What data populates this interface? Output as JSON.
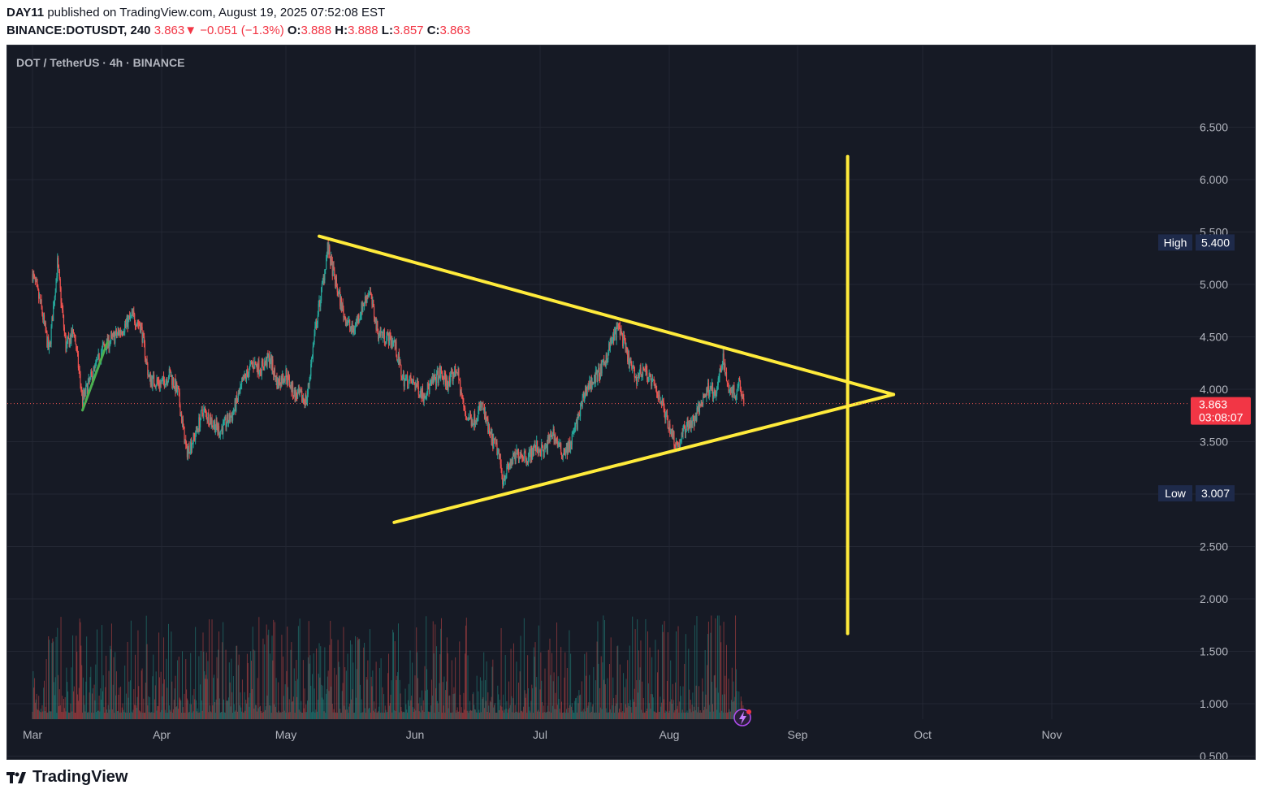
{
  "header": {
    "publisher": "DAY11",
    "published_text": "published on TradingView.com, August 19, 2025 07:52:08 EST",
    "symbol": "BINANCE:DOTUSDT, 240",
    "last": "3.863",
    "arrow": "▼",
    "change": "−0.051 (−1.3%)",
    "o_label": "O:",
    "o": "3.888",
    "h_label": "H:",
    "h": "3.888",
    "l_label": "L:",
    "l": "3.857",
    "c_label": "C:",
    "c": "3.863"
  },
  "legend": "DOT / TetherUS · 4h · BINANCE",
  "footer": {
    "brand": "TradingView"
  },
  "colors": {
    "up": "#26a69a",
    "down": "#ef5350",
    "drawing": "#ffeb3b",
    "trend": "#4caf50",
    "bg": "#161a25"
  },
  "chart_data": {
    "type": "candlestick",
    "x_ticks": [
      "Mar",
      "Apr",
      "May",
      "Jun",
      "Jul",
      "Aug",
      "Sep",
      "Oct",
      "Nov"
    ],
    "y_ticks": [
      "6.500",
      "6.000",
      "5.500",
      "5.000",
      "4.500",
      "4.000",
      "3.500",
      "3.000",
      "2.500",
      "2.000",
      "1.500",
      "1.000",
      "0.500"
    ],
    "ylim": [
      0.4,
      6.8
    ],
    "price_anchors": [
      [
        "2025-03-01",
        5.1
      ],
      [
        "2025-03-03",
        4.8
      ],
      [
        "2025-03-05",
        4.35
      ],
      [
        "2025-03-07",
        5.2
      ],
      [
        "2025-03-09",
        4.4
      ],
      [
        "2025-03-11",
        4.55
      ],
      [
        "2025-03-13",
        3.9
      ],
      [
        "2025-03-15",
        4.1
      ],
      [
        "2025-03-18",
        4.4
      ],
      [
        "2025-03-22",
        4.55
      ],
      [
        "2025-03-25",
        4.7
      ],
      [
        "2025-03-27",
        4.6
      ],
      [
        "2025-03-29",
        4.1
      ],
      [
        "2025-04-01",
        4.05
      ],
      [
        "2025-04-03",
        4.15
      ],
      [
        "2025-04-05",
        3.95
      ],
      [
        "2025-04-07",
        3.4
      ],
      [
        "2025-04-09",
        3.55
      ],
      [
        "2025-04-11",
        3.8
      ],
      [
        "2025-04-13",
        3.7
      ],
      [
        "2025-04-15",
        3.6
      ],
      [
        "2025-04-18",
        3.75
      ],
      [
        "2025-04-21",
        4.1
      ],
      [
        "2025-04-23",
        4.25
      ],
      [
        "2025-04-25",
        4.2
      ],
      [
        "2025-04-27",
        4.3
      ],
      [
        "2025-04-29",
        4.05
      ],
      [
        "2025-05-01",
        4.15
      ],
      [
        "2025-05-03",
        3.95
      ],
      [
        "2025-05-06",
        3.9
      ],
      [
        "2025-05-08",
        4.55
      ],
      [
        "2025-05-10",
        5.05
      ],
      [
        "2025-05-11",
        5.35
      ],
      [
        "2025-05-13",
        5.0
      ],
      [
        "2025-05-15",
        4.7
      ],
      [
        "2025-05-17",
        4.55
      ],
      [
        "2025-05-19",
        4.75
      ],
      [
        "2025-05-21",
        4.95
      ],
      [
        "2025-05-23",
        4.55
      ],
      [
        "2025-05-25",
        4.5
      ],
      [
        "2025-05-27",
        4.45
      ],
      [
        "2025-05-29",
        4.1
      ],
      [
        "2025-06-01",
        4.05
      ],
      [
        "2025-06-03",
        3.95
      ],
      [
        "2025-06-05",
        4.05
      ],
      [
        "2025-06-07",
        4.15
      ],
      [
        "2025-06-09",
        4.05
      ],
      [
        "2025-06-11",
        4.2
      ],
      [
        "2025-06-13",
        3.75
      ],
      [
        "2025-06-15",
        3.7
      ],
      [
        "2025-06-17",
        3.85
      ],
      [
        "2025-06-19",
        3.55
      ],
      [
        "2025-06-21",
        3.4
      ],
      [
        "2025-06-22",
        3.15
      ],
      [
        "2025-06-24",
        3.3
      ],
      [
        "2025-06-26",
        3.4
      ],
      [
        "2025-06-28",
        3.35
      ],
      [
        "2025-06-30",
        3.45
      ],
      [
        "2025-07-02",
        3.4
      ],
      [
        "2025-07-04",
        3.6
      ],
      [
        "2025-07-06",
        3.4
      ],
      [
        "2025-07-08",
        3.45
      ],
      [
        "2025-07-10",
        3.7
      ],
      [
        "2025-07-12",
        4.0
      ],
      [
        "2025-07-14",
        4.1
      ],
      [
        "2025-07-16",
        4.2
      ],
      [
        "2025-07-18",
        4.45
      ],
      [
        "2025-07-20",
        4.6
      ],
      [
        "2025-07-22",
        4.3
      ],
      [
        "2025-07-24",
        4.1
      ],
      [
        "2025-07-26",
        4.2
      ],
      [
        "2025-07-28",
        4.05
      ],
      [
        "2025-07-30",
        3.9
      ],
      [
        "2025-08-01",
        3.65
      ],
      [
        "2025-08-03",
        3.45
      ],
      [
        "2025-08-05",
        3.65
      ],
      [
        "2025-08-07",
        3.7
      ],
      [
        "2025-08-09",
        3.9
      ],
      [
        "2025-08-11",
        4.05
      ],
      [
        "2025-08-12",
        3.9
      ],
      [
        "2025-08-14",
        4.3
      ],
      [
        "2025-08-15",
        4.05
      ],
      [
        "2025-08-17",
        3.95
      ],
      [
        "2025-08-18",
        4.1
      ],
      [
        "2025-08-19",
        3.863
      ]
    ],
    "high_label": {
      "label": "High",
      "value": "5.400"
    },
    "low_label": {
      "label": "Low",
      "value": "3.007"
    },
    "last_label": {
      "value": "3.863",
      "countdown": "03:08:07"
    },
    "drawings": {
      "upper_trendline": [
        [
          "2025-05-09",
          5.46
        ],
        [
          "2025-09-24",
          3.95
        ]
      ],
      "lower_trendline": [
        [
          "2025-05-27",
          2.73
        ],
        [
          "2025-09-24",
          3.95
        ]
      ],
      "vertical_line": [
        [
          "2025-09-13",
          6.22
        ],
        [
          "2025-09-13",
          1.67
        ]
      ],
      "green_trend": [
        [
          "2025-03-13",
          3.8
        ],
        [
          "2025-03-19",
          4.45
        ]
      ]
    }
  }
}
